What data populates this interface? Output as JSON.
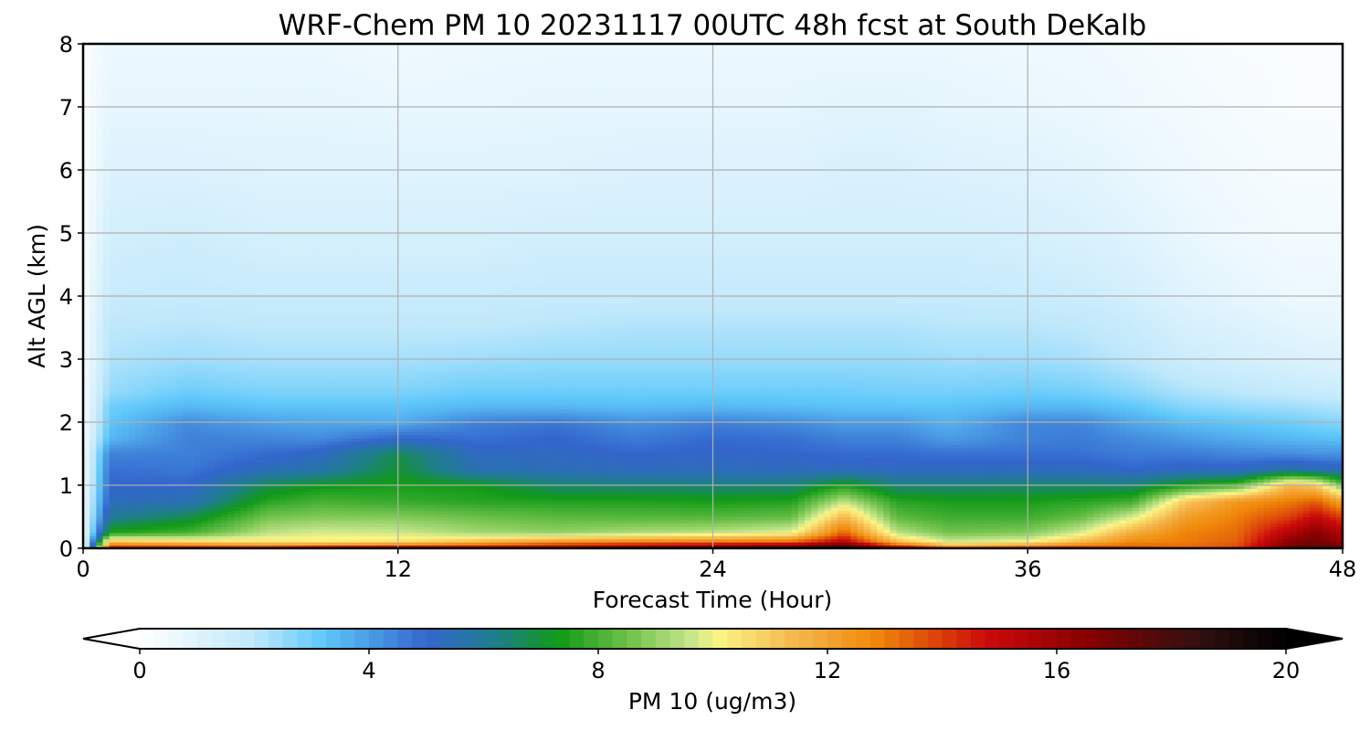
{
  "chart_data": {
    "type": "heatmap",
    "title": "WRF-Chem PM 10  20231117 00UTC 48h fcst at South DeKalb",
    "xlabel": "Forecast Time (Hour)",
    "ylabel": "Alt AGL (km)",
    "xlim": [
      0,
      48
    ],
    "ylim": [
      0,
      8
    ],
    "x_ticks": [
      "0",
      "12",
      "24",
      "36",
      "48"
    ],
    "y_ticks": [
      "0",
      "1",
      "2",
      "3",
      "4",
      "5",
      "6",
      "7",
      "8"
    ],
    "grid": true,
    "colorbar": {
      "label": "PM 10  (ug/m3)",
      "range": [
        0,
        20
      ],
      "ticks": [
        "0",
        "4",
        "8",
        "12",
        "16",
        "20"
      ],
      "extend": "both",
      "stops": [
        {
          "value": 0,
          "color": "#ffffff"
        },
        {
          "value": 2,
          "color": "#bfe8fb"
        },
        {
          "value": 3.2,
          "color": "#5ec8fa"
        },
        {
          "value": 5,
          "color": "#3366cc"
        },
        {
          "value": 6.2,
          "color": "#1e7e8c"
        },
        {
          "value": 7.3,
          "color": "#119a17"
        },
        {
          "value": 8.5,
          "color": "#6cc049"
        },
        {
          "value": 9.6,
          "color": "#c6e58a"
        },
        {
          "value": 10.1,
          "color": "#fbf585"
        },
        {
          "value": 11.4,
          "color": "#f5b84f"
        },
        {
          "value": 12.8,
          "color": "#f08a0a"
        },
        {
          "value": 14.8,
          "color": "#cc0a0a"
        },
        {
          "value": 16.5,
          "color": "#880000"
        },
        {
          "value": 18.5,
          "color": "#301010"
        },
        {
          "value": 20,
          "color": "#000000"
        }
      ]
    },
    "altitude_km": [
      0,
      0.1,
      0.25,
      0.5,
      0.75,
      1,
      1.25,
      1.5,
      1.75,
      2,
      2.25,
      2.5,
      3,
      3.5,
      4,
      5,
      6,
      7,
      8
    ],
    "series": [
      {
        "x": 0,
        "values": [
          0.5,
          0.5,
          0.5,
          0.5,
          0.5,
          0.4,
          0.4,
          0.4,
          0.3,
          0.3,
          0.3,
          0.3,
          0.2,
          0.2,
          0.2,
          0.1,
          0.1,
          0.1,
          0.1
        ]
      },
      {
        "x": 1,
        "values": [
          15,
          11.5,
          7.5,
          6,
          5.3,
          5,
          4.8,
          4.5,
          3.5,
          3.2,
          3,
          2.5,
          2.2,
          2,
          1.7,
          1.4,
          1.1,
          0.8,
          0.6
        ]
      },
      {
        "x": 4,
        "values": [
          15,
          11,
          8,
          6.8,
          5.5,
          5,
          4.7,
          4.5,
          4.5,
          4.3,
          3.5,
          3,
          2.4,
          2.1,
          1.8,
          1.5,
          1.1,
          0.8,
          0.6
        ]
      },
      {
        "x": 7,
        "values": [
          15,
          10.5,
          9.5,
          8.6,
          7.6,
          6.8,
          5.4,
          4.9,
          4.4,
          3.9,
          3.3,
          2.8,
          2.3,
          2,
          1.7,
          1.3,
          1,
          0.8,
          0.6
        ]
      },
      {
        "x": 9,
        "values": [
          16,
          10.3,
          9.8,
          8.8,
          8,
          7.2,
          5.7,
          5.2,
          4.3,
          3.8,
          3.3,
          2.8,
          2.3,
          2,
          1.7,
          1.3,
          1,
          0.8,
          0.6
        ]
      },
      {
        "x": 12,
        "values": [
          16.5,
          10.6,
          9.7,
          8.8,
          7.8,
          7.4,
          7,
          6.8,
          5,
          3.7,
          3.3,
          2.8,
          2.3,
          2,
          1.7,
          1.3,
          1,
          0.7,
          0.5
        ]
      },
      {
        "x": 15,
        "values": [
          16.5,
          11.5,
          9.2,
          8.5,
          7.6,
          7.3,
          5.5,
          5.2,
          4.8,
          4.5,
          3.5,
          3,
          2.4,
          2,
          1.7,
          1.3,
          1,
          0.7,
          0.6
        ]
      },
      {
        "x": 18,
        "values": [
          16.8,
          12.5,
          9,
          8.3,
          7.5,
          6.5,
          5.4,
          5.2,
          5,
          4.7,
          3.5,
          3,
          2.5,
          2.1,
          1.8,
          1.4,
          1,
          0.8,
          0.6
        ]
      },
      {
        "x": 21,
        "values": [
          17.5,
          13,
          9.3,
          8.2,
          7.5,
          6.4,
          5.3,
          5,
          4.6,
          4.2,
          3.4,
          3,
          2.5,
          2.2,
          1.8,
          1.4,
          1.1,
          0.8,
          0.6
        ]
      },
      {
        "x": 24,
        "values": [
          18.5,
          13.2,
          9.5,
          8.2,
          7.4,
          6.4,
          5.3,
          5.1,
          4.9,
          4.5,
          3.5,
          3,
          2.5,
          2.2,
          1.8,
          1.4,
          1.1,
          0.8,
          0.6
        ]
      },
      {
        "x": 27,
        "values": [
          19,
          13.5,
          10,
          8.4,
          7.5,
          6.4,
          5.3,
          5,
          4.8,
          4.3,
          3.4,
          3,
          2.5,
          2.2,
          1.8,
          1.4,
          1.1,
          0.8,
          0.6
        ]
      },
      {
        "x": 29,
        "values": [
          20,
          15.5,
          13.5,
          11.5,
          9.5,
          7.5,
          5.3,
          4.9,
          4.5,
          4,
          3.3,
          3,
          2.5,
          2.2,
          1.8,
          1.4,
          1.2,
          0.9,
          0.6
        ]
      },
      {
        "x": 31,
        "values": [
          16.5,
          11.5,
          9.5,
          8.3,
          7.6,
          6.4,
          5.2,
          4.9,
          4.5,
          4,
          3.3,
          2.9,
          2.5,
          2.2,
          1.8,
          1.4,
          1.2,
          0.9,
          0.6
        ]
      },
      {
        "x": 33,
        "values": [
          13.5,
          9.8,
          8.6,
          7.9,
          7.4,
          6.4,
          5.2,
          4.8,
          4,
          3.6,
          3.3,
          2.9,
          2.4,
          2.1,
          1.8,
          1.4,
          1.1,
          0.8,
          0.6
        ]
      },
      {
        "x": 36,
        "values": [
          14.5,
          10.2,
          8.8,
          7.9,
          7.4,
          6.5,
          5.3,
          4.8,
          4.5,
          4.4,
          3.5,
          3,
          2.4,
          2.1,
          1.7,
          1.3,
          1,
          0.7,
          0.5
        ]
      },
      {
        "x": 38,
        "values": [
          14.5,
          11.5,
          9.8,
          8.4,
          7.6,
          6.5,
          5.3,
          4.8,
          4.6,
          4.4,
          3.5,
          2.9,
          2.3,
          2,
          1.6,
          1.2,
          0.9,
          0.6,
          0.5
        ]
      },
      {
        "x": 40,
        "values": [
          14,
          12.8,
          11.8,
          9.8,
          7.9,
          6.5,
          5,
          4.6,
          4.3,
          3.8,
          3.2,
          2.6,
          2,
          1.7,
          1.4,
          1,
          0.7,
          0.5,
          0.4
        ]
      },
      {
        "x": 42,
        "values": [
          13.5,
          13,
          12.9,
          12.2,
          11,
          7.5,
          5.2,
          4.6,
          4,
          3.4,
          2.7,
          2.2,
          1.6,
          1.3,
          1,
          0.7,
          0.5,
          0.4,
          0.3
        ]
      },
      {
        "x": 44,
        "values": [
          14,
          13.5,
          13.3,
          13,
          12.4,
          8.2,
          5.2,
          4.4,
          3.7,
          3.2,
          2.5,
          2,
          1.4,
          1.1,
          0.8,
          0.5,
          0.4,
          0.3,
          0.2
        ]
      },
      {
        "x": 46,
        "values": [
          17.5,
          16.5,
          15.5,
          14,
          13,
          11.5,
          5.8,
          4.3,
          3.5,
          3,
          2.4,
          1.8,
          1.2,
          0.9,
          0.6,
          0.4,
          0.3,
          0.2,
          0.2
        ]
      },
      {
        "x": 47,
        "values": [
          18,
          17,
          16.5,
          15,
          13.5,
          11,
          5.5,
          4.2,
          3.4,
          2.8,
          2.3,
          1.7,
          1.1,
          0.8,
          0.6,
          0.4,
          0.3,
          0.2,
          0.2
        ]
      },
      {
        "x": 48,
        "values": [
          18,
          16,
          15.5,
          14,
          12,
          8.5,
          5.4,
          4.2,
          3.3,
          2.7,
          2.2,
          1.6,
          1.1,
          0.8,
          0.6,
          0.4,
          0.3,
          0.2,
          0.2
        ]
      }
    ]
  }
}
